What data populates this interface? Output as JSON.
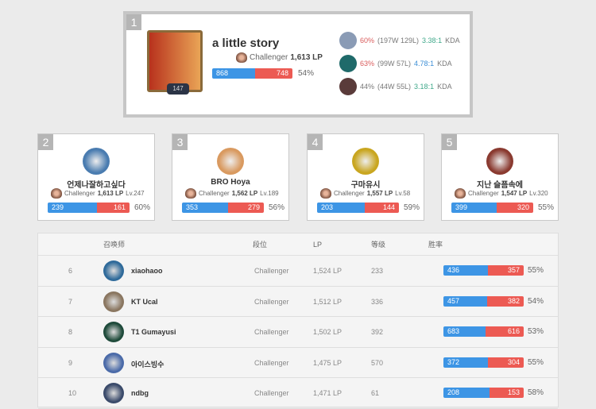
{
  "colors": {
    "win": "#3d95e5",
    "loss": "#ec5a53",
    "kda_green": "#3fa88a",
    "kda_blue": "#3d8fd6",
    "winrate_red": "#d95c5c"
  },
  "top": {
    "rank": "1",
    "name": "a little story",
    "level": "147",
    "tier": "Challenger",
    "lp": "1,613 LP",
    "wins": 868,
    "losses": 748,
    "winrate": "54%",
    "champions": [
      {
        "wr": "60%",
        "record": "(197W 129L)",
        "kda": "3.38:1",
        "kda_suffix": "KDA",
        "wr_color": "#d95c5c",
        "kda_color": "#3fa88a",
        "bg": "#8a9bb5"
      },
      {
        "wr": "63%",
        "record": "(99W 57L)",
        "kda": "4.78:1",
        "kda_suffix": "KDA",
        "wr_color": "#d95c5c",
        "kda_color": "#3d8fd6",
        "bg": "#1f6a6a"
      },
      {
        "wr": "44%",
        "record": "(44W 55L)",
        "kda": "3.18:1",
        "kda_suffix": "KDA",
        "wr_color": "#777777",
        "kda_color": "#3fa88a",
        "bg": "#5a3b3a"
      }
    ]
  },
  "cards": [
    {
      "rank": "2",
      "name": "언제나잘하고싶다",
      "tier": "Challenger",
      "lp": "1,613 LP",
      "level": "Lv.247",
      "wins": 239,
      "losses": 161,
      "winrate": "60%",
      "bg": "#4a7cb0"
    },
    {
      "rank": "3",
      "name": "BRO Hoya",
      "tier": "Challenger",
      "lp": "1,562 LP",
      "level": "Lv.189",
      "wins": 353,
      "losses": 279,
      "winrate": "56%",
      "bg": "#d99a60"
    },
    {
      "rank": "4",
      "name": "구마유시",
      "tier": "Challenger",
      "lp": "1,557 LP",
      "level": "Lv.58",
      "wins": 203,
      "losses": 144,
      "winrate": "59%",
      "bg": "#c9a620"
    },
    {
      "rank": "5",
      "name": "지난 슬픔속에",
      "tier": "Challenger",
      "lp": "1,547 LP",
      "level": "Lv.320",
      "wins": 399,
      "losses": 320,
      "winrate": "55%",
      "bg": "#8a3a30"
    }
  ],
  "table": {
    "headers": [
      "召唤师",
      "段位",
      "LP",
      "等级",
      "胜率"
    ],
    "rows": [
      {
        "rank": "6",
        "name": "xiaohaoo",
        "tier": "Challenger",
        "lp": "1,524 LP",
        "level": "233",
        "wins": 436,
        "losses": 357,
        "winrate": "55%",
        "bg": "#2f6a9a"
      },
      {
        "rank": "7",
        "name": "KT Ucal",
        "tier": "Challenger",
        "lp": "1,512 LP",
        "level": "336",
        "wins": 457,
        "losses": 382,
        "winrate": "54%",
        "bg": "#8a7660"
      },
      {
        "rank": "8",
        "name": "T1 Gumayusi",
        "tier": "Challenger",
        "lp": "1,502 LP",
        "level": "392",
        "wins": 683,
        "losses": 616,
        "winrate": "53%",
        "bg": "#1e4a3a"
      },
      {
        "rank": "9",
        "name": "아이스빙수",
        "tier": "Challenger",
        "lp": "1,475 LP",
        "level": "570",
        "wins": 372,
        "losses": 304,
        "winrate": "55%",
        "bg": "#4a6aa8"
      },
      {
        "rank": "10",
        "name": "ndbg",
        "tier": "Challenger",
        "lp": "1,471 LP",
        "level": "61",
        "wins": 208,
        "losses": 153,
        "winrate": "58%",
        "bg": "#3a4a6a"
      }
    ]
  }
}
